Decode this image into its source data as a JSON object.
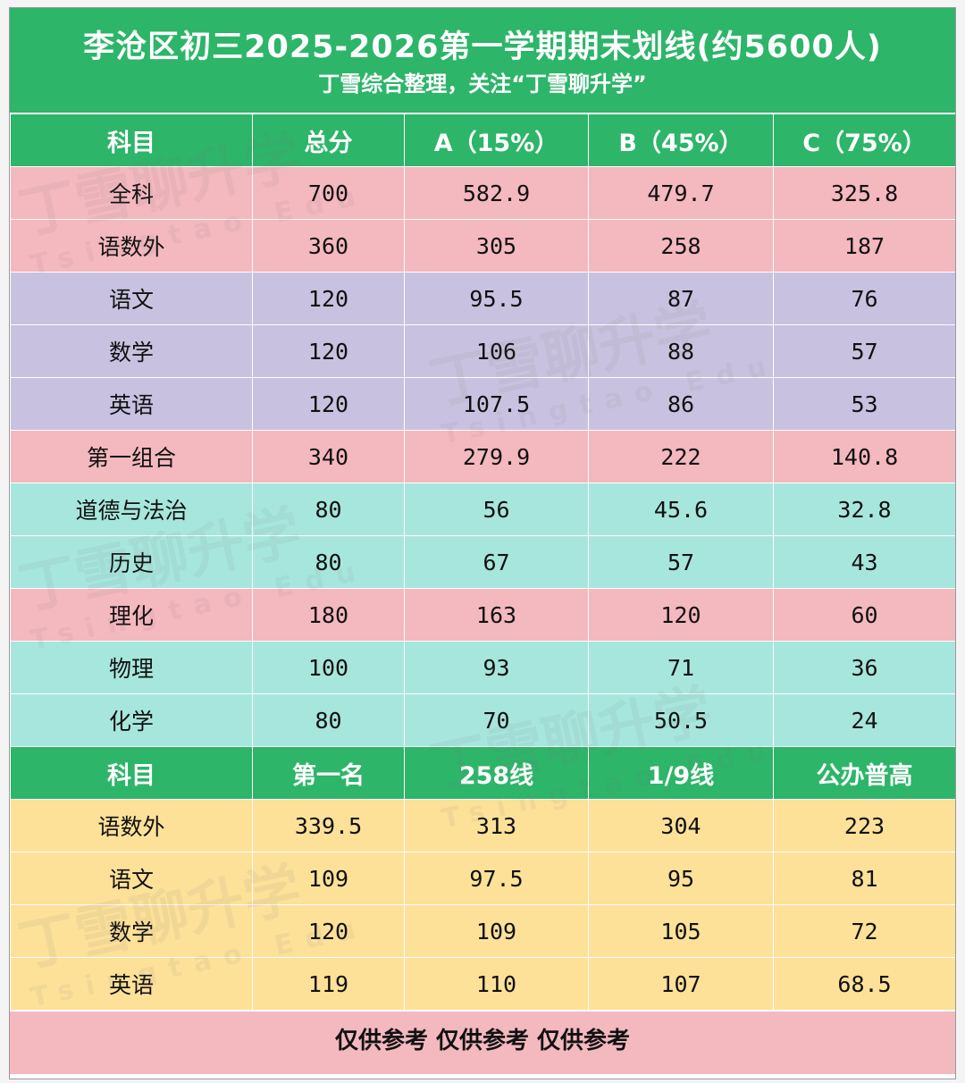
{
  "title": "李沧区初三2025-2026第一学期期末划线(约5600人)",
  "subtitle": "丁雪综合整理，关注“丁雪聊升学”",
  "table1": {
    "headers": [
      "科目",
      "总分",
      "A（15%）",
      "B（45%）",
      "C（75%）"
    ],
    "rows": [
      {
        "label": "全科",
        "values": [
          "700",
          "582.9",
          "479.7",
          "325.8"
        ],
        "color": "#f4b8bf"
      },
      {
        "label": "语数外",
        "values": [
          "360",
          "305",
          "258",
          "187"
        ],
        "color": "#f4b8bf"
      },
      {
        "label": "语文",
        "values": [
          "120",
          "95.5",
          "87",
          "76"
        ],
        "color": "#c8c2e0"
      },
      {
        "label": "数学",
        "values": [
          "120",
          "106",
          "88",
          "57"
        ],
        "color": "#c8c2e0"
      },
      {
        "label": "英语",
        "values": [
          "120",
          "107.5",
          "86",
          "53"
        ],
        "color": "#c8c2e0"
      },
      {
        "label": "第一组合",
        "values": [
          "340",
          "279.9",
          "222",
          "140.8"
        ],
        "color": "#f4b8bf"
      },
      {
        "label": "道德与法治",
        "values": [
          "80",
          "56",
          "45.6",
          "32.8"
        ],
        "color": "#a7e6dd"
      },
      {
        "label": "历史",
        "values": [
          "80",
          "67",
          "57",
          "43"
        ],
        "color": "#a7e6dd"
      },
      {
        "label": "理化",
        "values": [
          "180",
          "163",
          "120",
          "60"
        ],
        "color": "#f4b8bf"
      },
      {
        "label": "物理",
        "values": [
          "100",
          "93",
          "71",
          "36"
        ],
        "color": "#a7e6dd"
      },
      {
        "label": "化学",
        "values": [
          "80",
          "70",
          "50.5",
          "24"
        ],
        "color": "#a7e6dd"
      }
    ]
  },
  "table2": {
    "headers": [
      "科目",
      "第一名",
      "258线",
      "1/9线",
      "公办普高"
    ],
    "rows": [
      {
        "label": "语数外",
        "values": [
          "339.5",
          "313",
          "304",
          "223"
        ]
      },
      {
        "label": "语文",
        "values": [
          "109",
          "97.5",
          "95",
          "81"
        ]
      },
      {
        "label": "数学",
        "values": [
          "120",
          "109",
          "105",
          "72"
        ]
      },
      {
        "label": "英语",
        "values": [
          "119",
          "110",
          "107",
          "68.5"
        ]
      }
    ]
  },
  "footer": "仅供参考 仅供参考 仅供参考",
  "watermark": {
    "brand": "丁雪聊升学",
    "latin_1": "Tsingtao",
    "latin_2": "Edu"
  },
  "colors": {
    "header_green": "#2db56a",
    "pink": "#f4b8bf",
    "lavender": "#c8c2e0",
    "teal": "#a7e6dd",
    "yellow": "#fde199"
  }
}
